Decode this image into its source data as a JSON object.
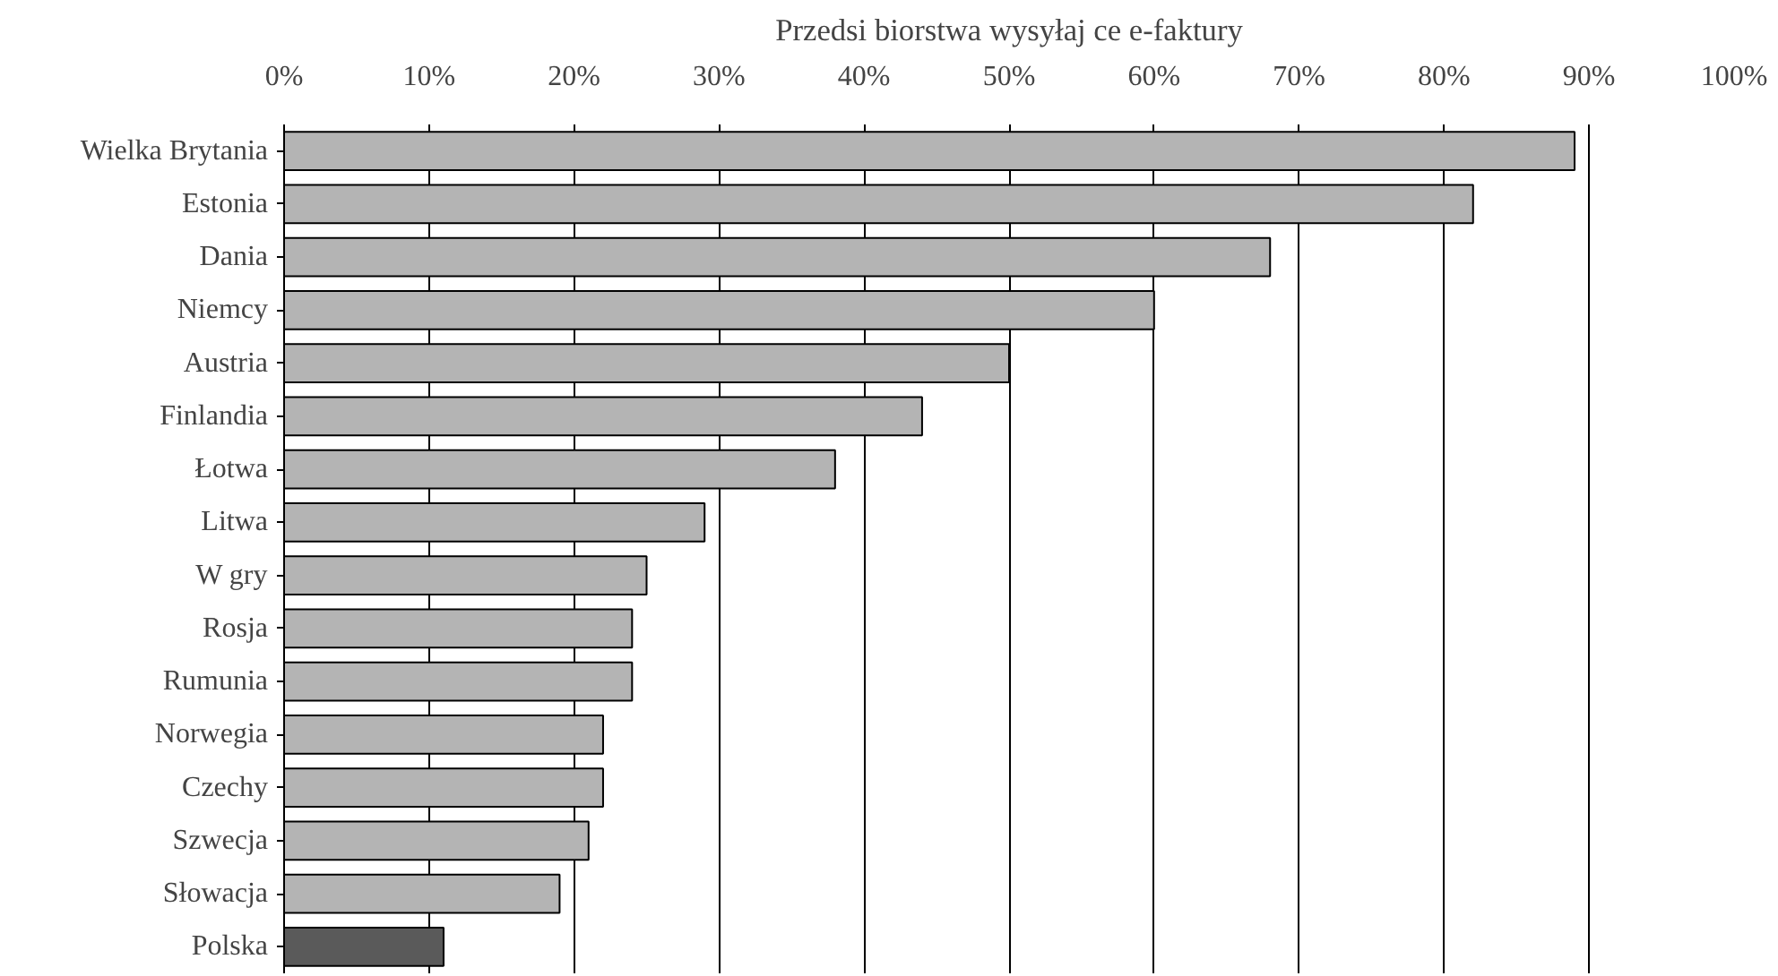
{
  "chart_data": {
    "type": "bar",
    "orientation": "horizontal",
    "title": "Przedsi biorstwa wysyłaj ce e-faktury",
    "categories": [
      "Wielka Brytania",
      "Estonia",
      "Dania",
      "Niemcy",
      "Austria",
      "Finlandia",
      "Łotwa",
      "Litwa",
      "W gry",
      "Rosja",
      "Rumunia",
      "Norwegia",
      "Czechy",
      "Szwecja",
      "Słowacja",
      "Polska"
    ],
    "values": [
      89,
      82,
      68,
      60,
      50,
      44,
      38,
      29,
      25,
      24,
      24,
      22,
      22,
      21,
      19,
      11
    ],
    "colors": [
      "#b4b4b4",
      "#b4b4b4",
      "#b4b4b4",
      "#b4b4b4",
      "#b4b4b4",
      "#b4b4b4",
      "#b4b4b4",
      "#b4b4b4",
      "#b4b4b4",
      "#b4b4b4",
      "#b4b4b4",
      "#b4b4b4",
      "#b4b4b4",
      "#b4b4b4",
      "#b4b4b4",
      "#5a5a5a"
    ],
    "xlim": [
      0,
      100
    ],
    "xticks": [
      {
        "value": 0,
        "label": "0%"
      },
      {
        "value": 10,
        "label": "10%"
      },
      {
        "value": 20,
        "label": "20%"
      },
      {
        "value": 30,
        "label": "30%"
      },
      {
        "value": 40,
        "label": "40%"
      },
      {
        "value": 50,
        "label": "50%"
      },
      {
        "value": 60,
        "label": "60%"
      },
      {
        "value": 70,
        "label": "70%"
      },
      {
        "value": 80,
        "label": "80%"
      },
      {
        "value": 90,
        "label": "90%"
      },
      {
        "value": 100,
        "label": "100%"
      }
    ],
    "grid": "x"
  }
}
